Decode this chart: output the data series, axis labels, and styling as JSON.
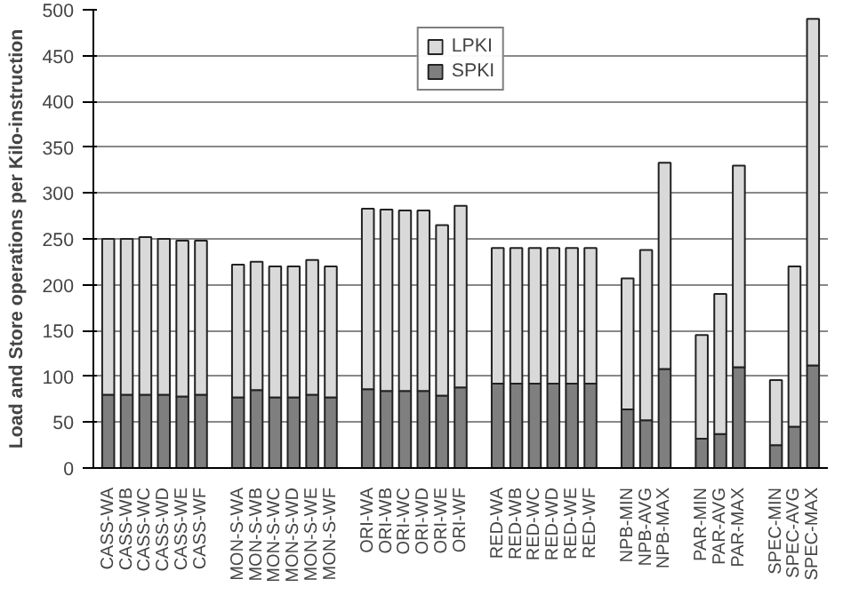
{
  "chart_data": {
    "type": "bar",
    "stacked": true,
    "ylabel": "Load and Store operations per Kilo-instruction",
    "categories": [
      "CASS-WA",
      "CASS-WB",
      "CASS-WC",
      "CASS-WD",
      "CASS-WE",
      "CASS-WF",
      null,
      "MON-S-WA",
      "MON-S-WB",
      "MON-S-WC",
      "MON-S-WD",
      "MON-S-WE",
      "MON-S-WF",
      null,
      "ORI-WA",
      "ORI-WB",
      "ORI-WC",
      "ORI-WD",
      "ORI-WE",
      "ORI-WF",
      null,
      "RED-WA",
      "RED-WB",
      "RED-WC",
      "RED-WD",
      "RED-WE",
      "RED-WF",
      null,
      "NPB-MIN",
      "NPB-AVG",
      "NPB-MAX",
      null,
      "PAR-MIN",
      "PAR-AVG",
      "PAR-MAX",
      null,
      "SPEC-MIN",
      "SPEC-AVG",
      "SPEC-MAX"
    ],
    "series": [
      {
        "name": "SPKI",
        "color": "#7f7f7f",
        "values": [
          80,
          80,
          80,
          80,
          78,
          80,
          null,
          77,
          85,
          77,
          77,
          80,
          77,
          null,
          86,
          84,
          84,
          84,
          79,
          88,
          null,
          92,
          92,
          92,
          92,
          92,
          92,
          null,
          64,
          52,
          108,
          null,
          32,
          37,
          110,
          null,
          25,
          45,
          112
        ]
      },
      {
        "name": "LPKI",
        "color": "#d9d9d9",
        "values": [
          170,
          170,
          172,
          170,
          170,
          168,
          null,
          145,
          140,
          143,
          143,
          147,
          143,
          null,
          197,
          198,
          197,
          197,
          186,
          198,
          null,
          148,
          148,
          148,
          148,
          148,
          148,
          null,
          143,
          186,
          225,
          null,
          113,
          153,
          220,
          null,
          71,
          175,
          378
        ]
      }
    ],
    "ylim": [
      0,
      500
    ],
    "yticks": [
      0,
      50,
      100,
      150,
      200,
      250,
      300,
      350,
      400,
      450,
      500
    ],
    "grid": "y",
    "legend": "top"
  }
}
